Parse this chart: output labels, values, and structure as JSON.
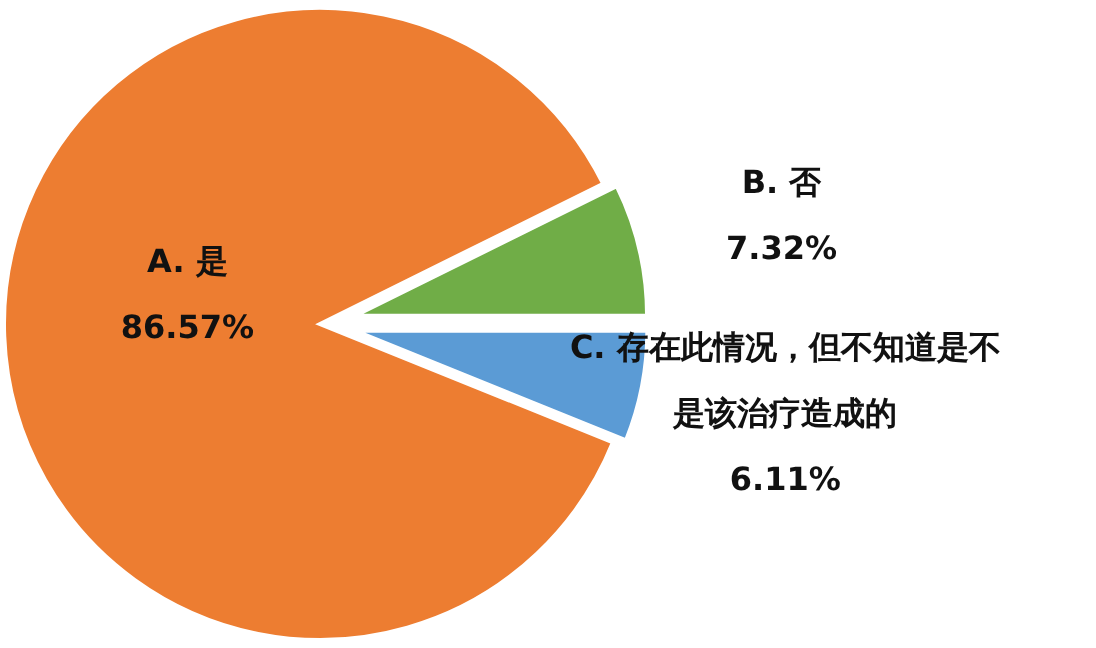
{
  "chart_data": {
    "type": "pie",
    "categories": [
      "A. 是",
      "B. 否",
      "C. 存在此情况，但不知道是不是该治疗造成的"
    ],
    "values": [
      86.57,
      7.32,
      6.11
    ],
    "colors": [
      "#ed7d31",
      "#70ad47",
      "#5b9bd5"
    ],
    "value_labels": [
      "86.57%",
      "7.32%",
      "6.11%"
    ],
    "legend": false
  }
}
